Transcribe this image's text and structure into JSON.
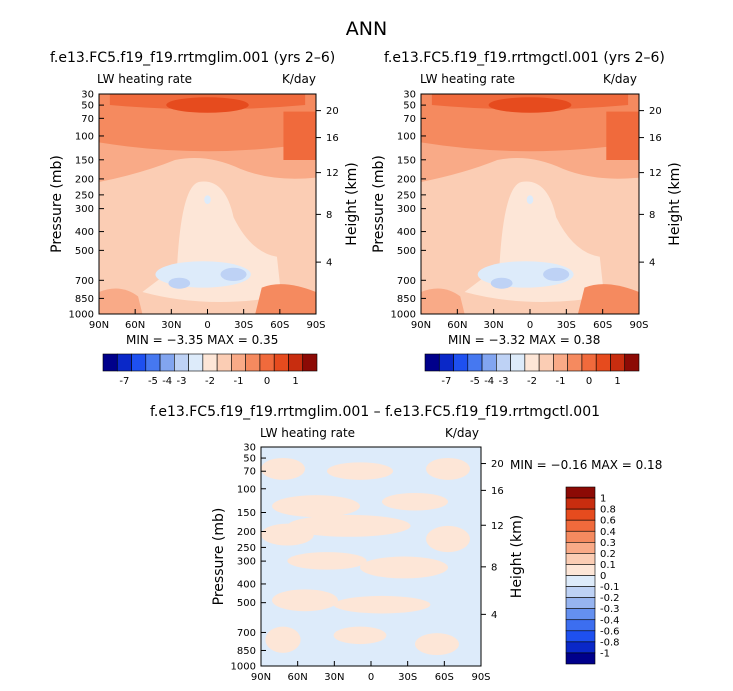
{
  "figure": {
    "title": "ANN",
    "diff_title": "f.e13.FC5.f19_f19.rrtmglim.001 – f.e13.FC5.f19_f19.rrtmgctl.001"
  },
  "panels": [
    {
      "title": "f.e13.FC5.f19_f19.rrtmglim.001 (yrs 2–6)",
      "variable": "LW heating rate",
      "units": "K/day",
      "stats": "MIN = −3.35   MAX =  0.35"
    },
    {
      "title": "f.e13.FC5.f19_f19.rrtmgctl.001 (yrs 2–6)",
      "variable": "LW heating rate",
      "units": "K/day",
      "stats": "MIN = −3.32   MAX =  0.38"
    },
    {
      "title": "",
      "variable": "LW heating rate",
      "units": "K/day",
      "stats": "MIN =   −0.16   MAX =    0.18"
    }
  ],
  "axes": {
    "pressure_label": "Pressure (mb)",
    "height_label": "Height (km)",
    "pressure_ticks": [
      "30",
      "50",
      "70",
      "100",
      "150",
      "200",
      "250",
      "300",
      "400",
      "500",
      "700",
      "850",
      "1000"
    ],
    "height_ticks": [
      "20",
      "16",
      "12",
      "8",
      "4"
    ],
    "lat_ticks": [
      "90N",
      "60N",
      "30N",
      "0",
      "30S",
      "60S",
      "90S"
    ]
  },
  "colors": {
    "main_scale": [
      "#00008b",
      "#0a28c8",
      "#1e50f0",
      "#4678f0",
      "#82a5f0",
      "#bed2f5",
      "#ddebfa",
      "#fde6d7",
      "#fbcdb4",
      "#f9aa87",
      "#f58a5f",
      "#f06a3c",
      "#e64b1e",
      "#c82d0f",
      "#8c0a05"
    ],
    "diff_scale": [
      "#00008b",
      "#0a28c8",
      "#1e50f0",
      "#3c6ef0",
      "#6490f0",
      "#96b4f0",
      "#bed2f5",
      "#ddebfa",
      "#fde6d7",
      "#fbcdb4",
      "#f9aa87",
      "#f58a5f",
      "#f06a3c",
      "#e64b1e",
      "#c82d0f",
      "#8c0a05"
    ]
  },
  "chart_data": [
    {
      "type": "heatmap",
      "title": "f.e13.FC5.f19_f19.rrtmglim.001 (yrs 2–6)",
      "variable": "LW heating rate",
      "units": "K/day",
      "x": [
        "90N",
        "60N",
        "30N",
        "0",
        "30S",
        "60S",
        "90S"
      ],
      "y_pressure_mb": [
        30,
        50,
        70,
        100,
        150,
        200,
        250,
        300,
        400,
        500,
        700,
        850,
        1000
      ],
      "y_height_km": [
        20,
        16,
        12,
        8,
        4
      ],
      "min": -3.35,
      "max": 0.35,
      "colorbar_labels": [
        "-7",
        "-5",
        "-4",
        "-3",
        "-2",
        "-1",
        "0",
        "1"
      ]
    },
    {
      "type": "heatmap",
      "title": "f.e13.FC5.f19_f19.rrtmgctl.001 (yrs 2–6)",
      "variable": "LW heating rate",
      "units": "K/day",
      "x": [
        "90N",
        "60N",
        "30N",
        "0",
        "30S",
        "60S",
        "90S"
      ],
      "y_pressure_mb": [
        30,
        50,
        70,
        100,
        150,
        200,
        250,
        300,
        400,
        500,
        700,
        850,
        1000
      ],
      "y_height_km": [
        20,
        16,
        12,
        8,
        4
      ],
      "min": -3.32,
      "max": 0.38,
      "colorbar_labels": [
        "-7",
        "-5",
        "-4",
        "-3",
        "-2",
        "-1",
        "0",
        "1"
      ]
    },
    {
      "type": "heatmap",
      "title": "f.e13.FC5.f19_f19.rrtmglim.001 – f.e13.FC5.f19_f19.rrtmgctl.001",
      "variable": "LW heating rate",
      "units": "K/day",
      "x": [
        "90N",
        "60N",
        "30N",
        "0",
        "30S",
        "60S",
        "90S"
      ],
      "y_pressure_mb": [
        30,
        50,
        70,
        100,
        150,
        200,
        250,
        300,
        400,
        500,
        700,
        850,
        1000
      ],
      "y_height_km": [
        20,
        16,
        12,
        8,
        4
      ],
      "min": -0.16,
      "max": 0.18,
      "colorbar_labels": [
        "1",
        "0.8",
        "0.6",
        "0.4",
        "0.3",
        "0.2",
        "0.1",
        "0",
        "-0.1",
        "-0.2",
        "-0.3",
        "-0.4",
        "-0.6",
        "-0.8",
        "-1"
      ]
    }
  ]
}
